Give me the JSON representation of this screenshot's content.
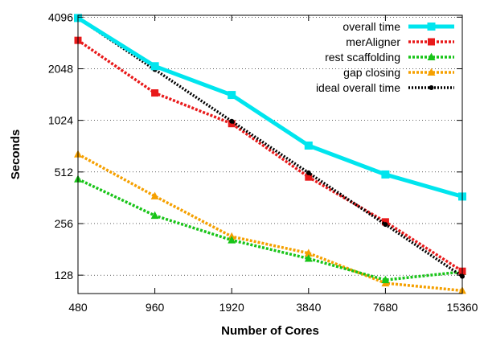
{
  "chart_data": {
    "type": "line",
    "title": "",
    "xlabel": "Number of Cores",
    "ylabel": "Seconds",
    "x_scale": "log2",
    "y_scale": "log2",
    "x": [
      480,
      960,
      1920,
      3840,
      7680,
      15360
    ],
    "x_tick_labels": [
      "480",
      "960",
      "1920",
      "3840",
      "7680",
      "15360"
    ],
    "y_ticks": [
      128,
      256,
      512,
      1024,
      2048,
      4096
    ],
    "y_tick_labels": [
      "128",
      "256",
      "512",
      "1024",
      "2048",
      "4096"
    ],
    "ylim": [
      100,
      4200
    ],
    "grid": "horizontal dotted",
    "legend_position": "top-right",
    "series": [
      {
        "name": "overall time",
        "values": [
          4050,
          2120,
          1440,
          730,
          495,
          368
        ],
        "color": "#00e5ee",
        "marker": "square",
        "style": "solid"
      },
      {
        "name": "merAligner",
        "values": [
          3000,
          1480,
          980,
          478,
          262,
          135
        ],
        "color": "#e8191a",
        "marker": "square",
        "style": "dotted"
      },
      {
        "name": "rest scaffolding",
        "values": [
          465,
          285,
          205,
          160,
          120,
          134
        ],
        "color": "#18c418",
        "marker": "triangle",
        "style": "dotted"
      },
      {
        "name": "gap closing",
        "values": [
          650,
          370,
          215,
          172,
          115,
          104
        ],
        "color": "#f5a000",
        "marker": "triangle",
        "style": "dotted"
      },
      {
        "name": "ideal overall time",
        "values": [
          4050,
          2025,
          1012,
          506,
          253,
          126
        ],
        "color": "#000000",
        "marker": "dot",
        "style": "dotted"
      }
    ]
  }
}
